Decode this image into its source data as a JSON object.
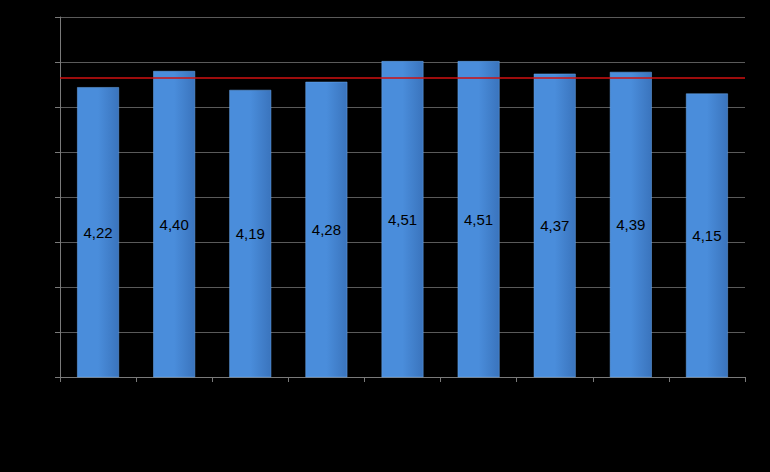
{
  "chart_data": {
    "type": "bar",
    "categories": [
      null,
      null,
      null,
      null,
      null,
      null,
      null,
      null,
      null
    ],
    "values": [
      4.22,
      4.4,
      4.19,
      4.28,
      4.51,
      4.51,
      4.37,
      4.39,
      4.15
    ],
    "value_labels": [
      "4,22",
      "4,40",
      "4,19",
      "4,28",
      "4,51",
      "4,51",
      "4,37",
      "4,39",
      "4,15"
    ],
    "color": "#4a8ddb",
    "ylim": [
      1,
      5
    ],
    "yticks": [
      1,
      1.5,
      2,
      2.5,
      3,
      3.5,
      4,
      4.5,
      5
    ],
    "grid": true,
    "data_labels": true,
    "tick_labels": false,
    "reference_line": 4.32,
    "reference_line_color": "#d01010"
  }
}
